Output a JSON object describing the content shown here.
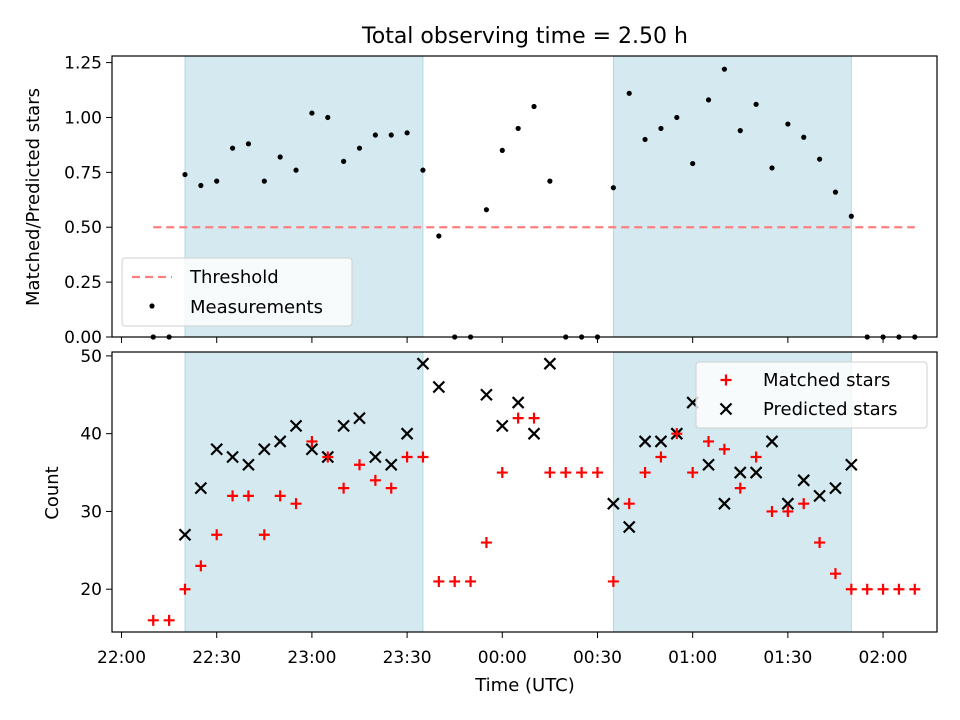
{
  "chart_data": [
    {
      "type": "scatter",
      "title": "Total observing time = 2.50 h",
      "xlabel": "",
      "ylabel": "Matched/Predicted stars",
      "ylim": [
        0,
        1.28
      ],
      "yticks": [
        "0.00",
        "0.25",
        "0.50",
        "0.75",
        "1.00",
        "1.25"
      ],
      "shaded_intervals": [
        [
          "22:20",
          "23:35"
        ],
        [
          "00:35",
          "01:50"
        ]
      ],
      "legend": {
        "placement": "lower-left",
        "entries": [
          "Threshold",
          "Measurements"
        ]
      },
      "series": [
        {
          "name": "Threshold",
          "style": "dashed-line",
          "color": "#ff7f7f",
          "x": [
            "22:10",
            "02:10"
          ],
          "y": [
            0.5,
            0.5
          ]
        },
        {
          "name": "Measurements",
          "style": "dot",
          "color": "#000000",
          "x": [
            "22:10",
            "22:15",
            "22:20",
            "22:25",
            "22:30",
            "22:35",
            "22:40",
            "22:45",
            "22:50",
            "22:55",
            "23:00",
            "23:05",
            "23:10",
            "23:15",
            "23:20",
            "23:25",
            "23:30",
            "23:35",
            "23:40",
            "23:45",
            "23:50",
            "23:55",
            "00:00",
            "00:05",
            "00:10",
            "00:15",
            "00:20",
            "00:25",
            "00:30",
            "00:35",
            "00:40",
            "00:45",
            "00:50",
            "00:55",
            "01:00",
            "01:05",
            "01:10",
            "01:15",
            "01:20",
            "01:25",
            "01:30",
            "01:35",
            "01:40",
            "01:45",
            "01:50",
            "01:55",
            "02:00",
            "02:05",
            "02:10"
          ],
          "y": [
            0,
            0,
            0.74,
            0.69,
            0.71,
            0.86,
            0.88,
            0.71,
            0.82,
            0.76,
            1.02,
            1.0,
            0.8,
            0.86,
            0.92,
            0.92,
            0.93,
            0.76,
            0.46,
            0,
            0,
            0.58,
            0.85,
            0.95,
            1.05,
            0.71,
            0,
            0,
            0,
            0.68,
            1.11,
            0.9,
            0.95,
            1.0,
            0.79,
            1.08,
            1.22,
            0.94,
            1.06,
            0.77,
            0.97,
            0.91,
            0.81,
            0.66,
            0.55,
            0,
            0,
            0,
            0
          ]
        }
      ]
    },
    {
      "type": "scatter",
      "title": "",
      "xlabel": "Time (UTC)",
      "ylabel": "Count",
      "ylim": [
        14.5,
        50.5
      ],
      "yticks": [
        "20",
        "30",
        "40",
        "50"
      ],
      "xticks": [
        "22:00",
        "22:30",
        "23:00",
        "23:30",
        "00:00",
        "00:30",
        "01:00",
        "01:30",
        "02:00"
      ],
      "shaded_intervals": [
        [
          "22:20",
          "23:35"
        ],
        [
          "00:35",
          "01:50"
        ]
      ],
      "legend": {
        "placement": "upper-right",
        "entries": [
          "Matched stars",
          "Predicted stars"
        ]
      },
      "series": [
        {
          "name": "Matched stars",
          "marker": "plus",
          "color": "#ff0000",
          "x": [
            "22:10",
            "22:15",
            "22:20",
            "22:25",
            "22:30",
            "22:35",
            "22:40",
            "22:45",
            "22:50",
            "22:55",
            "23:00",
            "23:05",
            "23:10",
            "23:15",
            "23:20",
            "23:25",
            "23:30",
            "23:35",
            "23:40",
            "23:45",
            "23:50",
            "23:55",
            "00:00",
            "00:05",
            "00:10",
            "00:15",
            "00:20",
            "00:25",
            "00:30",
            "00:35",
            "00:40",
            "00:45",
            "00:50",
            "00:55",
            "01:00",
            "01:05",
            "01:10",
            "01:15",
            "01:20",
            "01:25",
            "01:30",
            "01:35",
            "01:40",
            "01:45",
            "01:50",
            "01:55",
            "02:00",
            "02:05",
            "02:10"
          ],
          "y": [
            16,
            16,
            20,
            23,
            27,
            32,
            32,
            27,
            32,
            31,
            39,
            37,
            33,
            36,
            34,
            33,
            37,
            37,
            21,
            21,
            21,
            26,
            35,
            42,
            42,
            35,
            35,
            35,
            35,
            21,
            31,
            35,
            37,
            40,
            35,
            39,
            38,
            33,
            37,
            30,
            30,
            31,
            26,
            22,
            20,
            20,
            20,
            20,
            20
          ]
        },
        {
          "name": "Predicted stars",
          "marker": "x",
          "color": "#000000",
          "x": [
            "22:20",
            "22:25",
            "22:30",
            "22:35",
            "22:40",
            "22:45",
            "22:50",
            "22:55",
            "23:00",
            "23:05",
            "23:10",
            "23:15",
            "23:20",
            "23:25",
            "23:30",
            "23:35",
            "23:40",
            "23:55",
            "00:00",
            "00:05",
            "00:10",
            "00:15",
            "00:35",
            "00:40",
            "00:45",
            "00:50",
            "00:55",
            "01:00",
            "01:05",
            "01:10",
            "01:15",
            "01:20",
            "01:25",
            "01:30",
            "01:35",
            "01:40",
            "01:45",
            "01:50"
          ],
          "y": [
            27,
            33,
            38,
            37,
            36,
            38,
            39,
            41,
            38,
            37,
            41,
            42,
            37,
            36,
            40,
            49,
            46,
            45,
            41,
            44,
            40,
            49,
            31,
            28,
            39,
            39,
            40,
            44,
            36,
            31,
            35,
            35,
            39,
            31,
            34,
            32,
            33,
            36
          ]
        }
      ]
    }
  ],
  "colors": {
    "shade": "#d4eaf0",
    "threshold": "#ff7f7f",
    "matched": "#ff0000",
    "predicted": "#000000"
  }
}
